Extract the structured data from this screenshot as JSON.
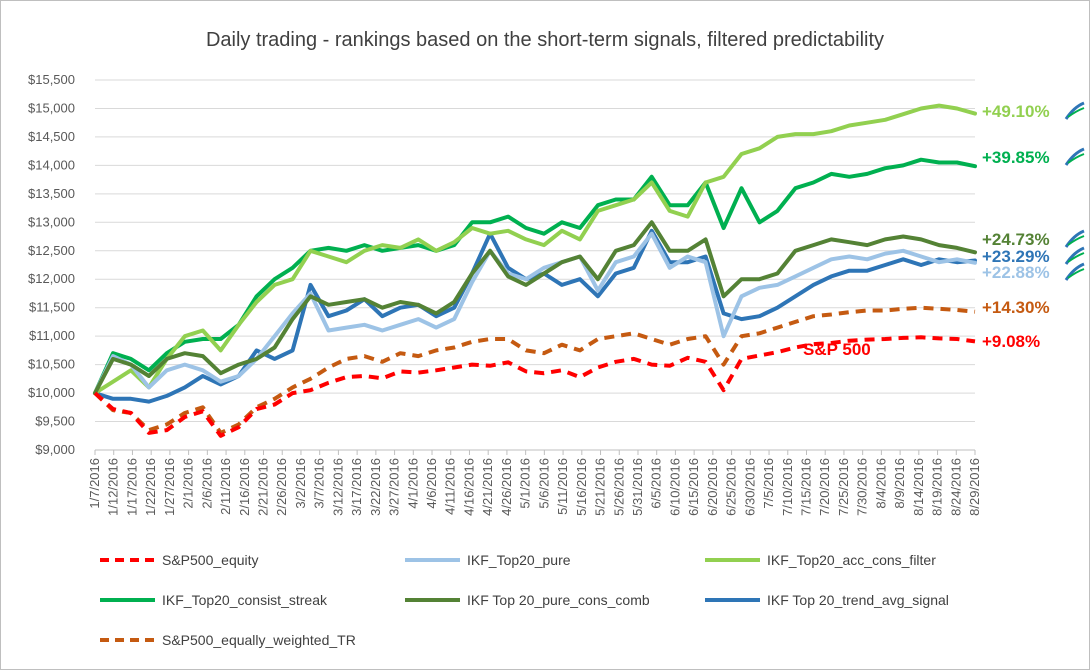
{
  "chart_data": {
    "type": "line",
    "title": "Daily trading - rankings based on the short-term signals, filtered predictability",
    "xlabel": "",
    "ylabel": "",
    "ylim": [
      9000,
      15500
    ],
    "yticks": [
      "$9,000",
      "$9,500",
      "$10,000",
      "$10,500",
      "$11,000",
      "$11,500",
      "$12,000",
      "$12,500",
      "$13,000",
      "$13,500",
      "$14,000",
      "$14,500",
      "$15,000",
      "$15,500"
    ],
    "xticks": [
      "1/7/2016",
      "1/12/2016",
      "1/17/2016",
      "1/22/2016",
      "1/27/2016",
      "2/1/2016",
      "2/6/2016",
      "2/11/2016",
      "2/16/2016",
      "2/21/2016",
      "2/26/2016",
      "3/2/2016",
      "3/7/2016",
      "3/12/2016",
      "3/17/2016",
      "3/22/2016",
      "3/27/2016",
      "4/1/2016",
      "4/6/2016",
      "4/11/2016",
      "4/16/2016",
      "4/21/2016",
      "4/26/2016",
      "5/1/2016",
      "5/6/2016",
      "5/11/2016",
      "5/16/2016",
      "5/21/2016",
      "5/26/2016",
      "5/31/2016",
      "6/5/2016",
      "6/10/2016",
      "6/15/2016",
      "6/20/2016",
      "6/25/2016",
      "6/30/2016",
      "7/5/2016",
      "7/10/2016",
      "7/15/2016",
      "7/20/2016",
      "7/25/2016",
      "7/30/2016",
      "8/4/2016",
      "8/9/2016",
      "8/14/2016",
      "8/19/2016",
      "8/24/2016",
      "8/29/2016"
    ],
    "grid": true,
    "legend_position": "bottom",
    "x_dates": [
      "1/7/2016",
      "1/12/2016",
      "1/17/2016",
      "1/22/2016",
      "1/27/2016",
      "2/1/2016",
      "2/6/2016",
      "2/11/2016",
      "2/16/2016",
      "2/21/2016",
      "2/26/2016",
      "3/2/2016",
      "3/7/2016",
      "3/12/2016",
      "3/17/2016",
      "3/22/2016",
      "3/27/2016",
      "4/1/2016",
      "4/6/2016",
      "4/11/2016",
      "4/16/2016",
      "4/21/2016",
      "4/26/2016",
      "5/1/2016",
      "5/6/2016",
      "5/11/2016",
      "5/16/2016",
      "5/21/2016",
      "5/26/2016",
      "5/31/2016",
      "6/5/2016",
      "6/10/2016",
      "6/15/2016",
      "6/20/2016",
      "6/25/2016",
      "6/27/2016",
      "6/30/2016",
      "7/5/2016",
      "7/10/2016",
      "7/15/2016",
      "7/20/2016",
      "7/25/2016",
      "7/30/2016",
      "8/4/2016",
      "8/9/2016",
      "8/14/2016",
      "8/19/2016",
      "8/24/2016",
      "8/29/2016",
      "9/1/2016"
    ],
    "series": [
      {
        "name": "S&P500_equity",
        "color": "#ff0000",
        "dash": true,
        "end_label": "+9.08%",
        "values": [
          10000,
          9720,
          9650,
          9300,
          9350,
          9580,
          9680,
          9250,
          9400,
          9720,
          9800,
          10000,
          10050,
          10180,
          10280,
          10300,
          10260,
          10380,
          10360,
          10400,
          10450,
          10500,
          10480,
          10540,
          10380,
          10350,
          10400,
          10280,
          10450,
          10550,
          10600,
          10500,
          10480,
          10620,
          10550,
          10050,
          10600,
          10660,
          10720,
          10800,
          10860,
          10880,
          10920,
          10940,
          10950,
          10970,
          10980,
          10960,
          10950,
          10908
        ]
      },
      {
        "name": "IKF_Top20_pure",
        "color": "#9dc3e6",
        "dash": false,
        "end_label": "+22.88%",
        "values": [
          10000,
          10650,
          10500,
          10100,
          10400,
          10500,
          10400,
          10200,
          10300,
          10600,
          11000,
          11400,
          11750,
          11100,
          11150,
          11200,
          11100,
          11200,
          11300,
          11150,
          11300,
          11950,
          12500,
          12100,
          12000,
          12200,
          12300,
          12400,
          11800,
          12300,
          12400,
          12800,
          12200,
          12400,
          12300,
          11000,
          11700,
          11850,
          11900,
          12050,
          12200,
          12350,
          12400,
          12350,
          12450,
          12500,
          12400,
          12300,
          12350,
          12288
        ]
      },
      {
        "name": "IKF_Top20_acc_cons_filter",
        "color": "#92d050",
        "dash": false,
        "end_label": "+49.10%",
        "values": [
          10000,
          10200,
          10400,
          10100,
          10600,
          11000,
          11100,
          10750,
          11200,
          11600,
          11900,
          12000,
          12500,
          12400,
          12300,
          12500,
          12600,
          12550,
          12700,
          12500,
          12650,
          12900,
          12800,
          12850,
          12700,
          12600,
          12850,
          12700,
          13200,
          13300,
          13400,
          13700,
          13200,
          13100,
          13700,
          13800,
          14200,
          14300,
          14500,
          14550,
          14550,
          14600,
          14700,
          14750,
          14800,
          14900,
          15000,
          15050,
          15000,
          14910
        ]
      },
      {
        "name": "IKF_Top20_consist_streak",
        "color": "#00b050",
        "dash": false,
        "end_label": "+39.85%",
        "values": [
          10000,
          10700,
          10600,
          10400,
          10700,
          10900,
          10950,
          10950,
          11200,
          11700,
          12000,
          12200,
          12500,
          12550,
          12500,
          12600,
          12500,
          12550,
          12600,
          12500,
          12600,
          13000,
          13000,
          13100,
          12900,
          12800,
          13000,
          12900,
          13300,
          13400,
          13400,
          13800,
          13300,
          13300,
          13700,
          12900,
          13600,
          13000,
          13200,
          13600,
          13700,
          13850,
          13800,
          13850,
          13950,
          14000,
          14100,
          14050,
          14050,
          13985
        ]
      },
      {
        "name": "IKF Top 20_pure_cons_comb",
        "color": "#548235",
        "dash": false,
        "end_label": "+24.73%",
        "values": [
          10000,
          10600,
          10500,
          10300,
          10600,
          10700,
          10650,
          10350,
          10500,
          10600,
          10800,
          11300,
          11700,
          11550,
          11600,
          11650,
          11500,
          11600,
          11550,
          11400,
          11600,
          12100,
          12500,
          12050,
          11900,
          12100,
          12300,
          12400,
          12000,
          12500,
          12600,
          13000,
          12500,
          12500,
          12700,
          11700,
          12000,
          12000,
          12100,
          12500,
          12600,
          12700,
          12650,
          12600,
          12700,
          12750,
          12700,
          12600,
          12550,
          12473
        ]
      },
      {
        "name": "IKF Top 20_trend_avg_signal",
        "color": "#2e75b6",
        "dash": false,
        "end_label": "+23.29%",
        "values": [
          10000,
          9900,
          9900,
          9850,
          9950,
          10100,
          10300,
          10150,
          10300,
          10750,
          10600,
          10750,
          11900,
          11350,
          11450,
          11650,
          11350,
          11500,
          11550,
          11350,
          11500,
          12100,
          12800,
          12200,
          12000,
          12100,
          11900,
          12000,
          11700,
          12100,
          12200,
          12850,
          12300,
          12300,
          12400,
          11400,
          11300,
          11350,
          11500,
          11700,
          11900,
          12050,
          12150,
          12150,
          12250,
          12350,
          12250,
          12350,
          12300,
          12329
        ]
      },
      {
        "name": "S&P500_equally_weighted_TR",
        "color": "#c55a11",
        "dash": true,
        "end_label": "+14.30%",
        "values": [
          10000,
          9700,
          9650,
          9350,
          9450,
          9650,
          9750,
          9300,
          9450,
          9750,
          9900,
          10100,
          10250,
          10450,
          10600,
          10650,
          10550,
          10700,
          10650,
          10750,
          10800,
          10900,
          10950,
          10950,
          10750,
          10700,
          10850,
          10750,
          10950,
          11000,
          11050,
          10950,
          10850,
          10950,
          11000,
          10500,
          11000,
          11050,
          11150,
          11250,
          11350,
          11380,
          11420,
          11450,
          11450,
          11480,
          11500,
          11480,
          11460,
          11430
        ]
      }
    ],
    "annotations": [
      {
        "text": "S&P 500",
        "color": "#ff0000"
      }
    ]
  }
}
